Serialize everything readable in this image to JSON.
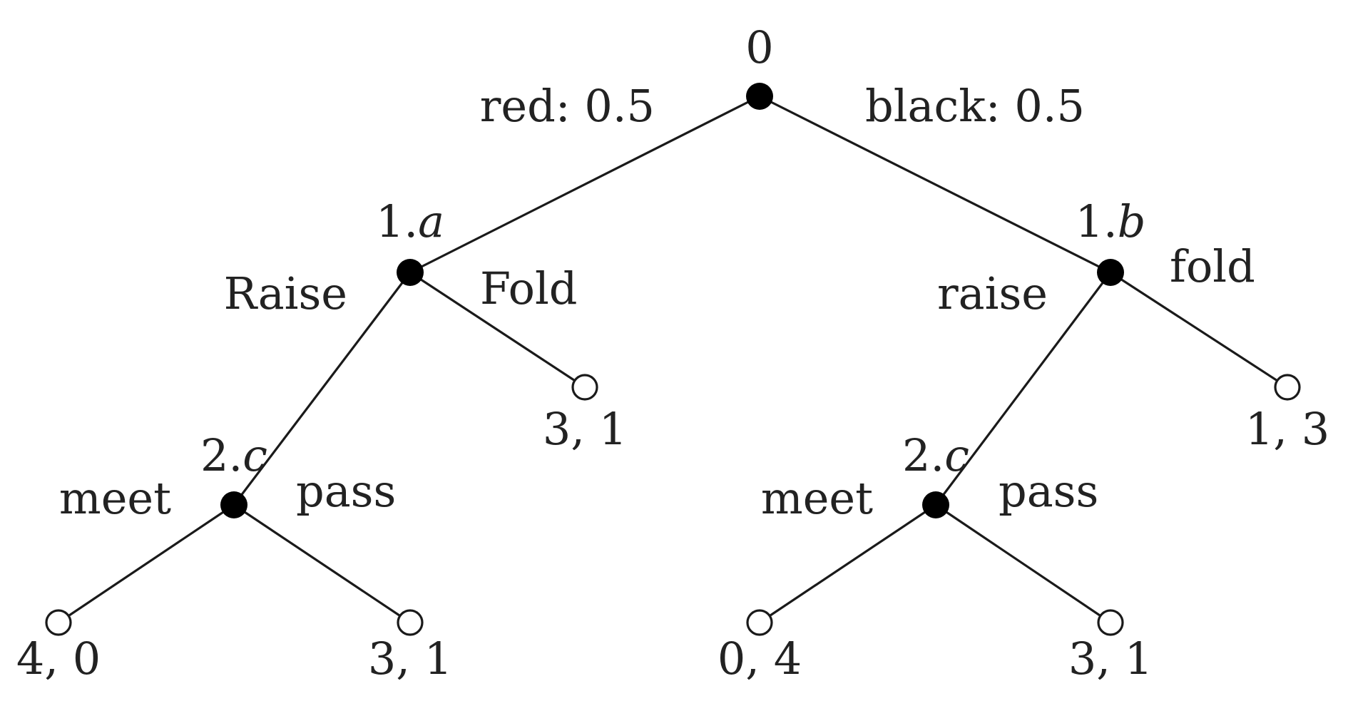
{
  "tree": {
    "root_label": "0",
    "nature_moves": {
      "left": "red: 0.5",
      "right": "black: 0.5"
    },
    "player1": {
      "left_node": {
        "prefix": "1.",
        "suffix": "a"
      },
      "right_node": {
        "prefix": "1.",
        "suffix": "b"
      },
      "left_moves": {
        "raise": "Raise",
        "fold": "Fold"
      },
      "right_moves": {
        "raise": "raise",
        "fold": "fold"
      }
    },
    "player2": {
      "left_node": {
        "prefix": "2.",
        "suffix": "c"
      },
      "right_node": {
        "prefix": "2.",
        "suffix": "c"
      },
      "left_moves": {
        "meet": "meet",
        "pass": "pass"
      },
      "right_moves": {
        "meet": "meet",
        "pass": "pass"
      }
    },
    "payoffs": {
      "red_fold": "3, 1",
      "black_fold": "1, 3",
      "red_meet": "4, 0",
      "red_pass": "3, 1",
      "black_meet": "0, 4",
      "black_pass": "3, 1"
    },
    "colors": {
      "line": "#1a1a1a",
      "decision_node": "#000000",
      "terminal_fill": "#ffffff",
      "text": "#222222"
    }
  }
}
